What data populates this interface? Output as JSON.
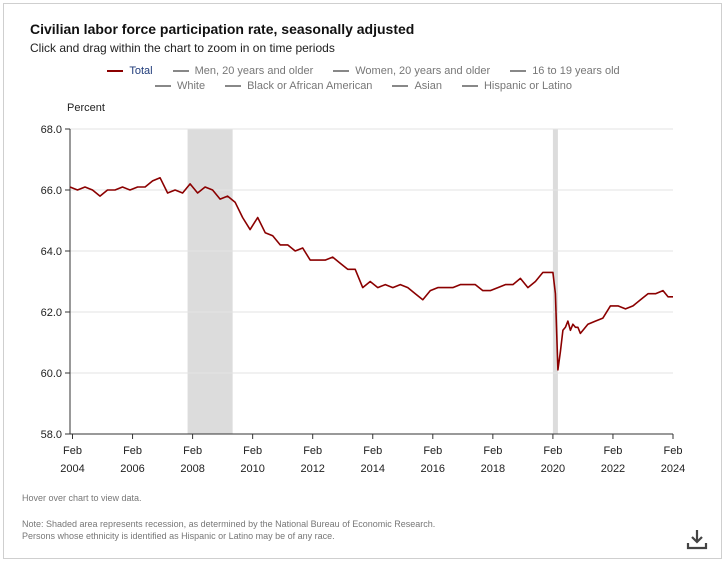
{
  "header": {
    "title": "Civilian labor force participation rate, seasonally adjusted",
    "subtitle": "Click and drag within the chart to zoom in on time periods"
  },
  "legend": {
    "row1": [
      {
        "label": "Total",
        "active": true
      },
      {
        "label": "Men, 20 years and older",
        "active": false
      },
      {
        "label": "Women, 20 years and older",
        "active": false
      },
      {
        "label": "16 to 19 years old",
        "active": false
      }
    ],
    "row2": [
      {
        "label": "White",
        "active": false
      },
      {
        "label": "Black or African American",
        "active": false
      },
      {
        "label": "Asian",
        "active": false
      },
      {
        "label": "Hispanic or Latino",
        "active": false
      }
    ]
  },
  "colors": {
    "total_line": "#8b0000",
    "recession_band": "#dcdcdc",
    "legend_active_text": "#1f3b7a",
    "legend_inactive": "#888888"
  },
  "footer": {
    "hover": "Hover over chart to view data.",
    "note_line1": "Note: Shaded area represents recession, as determined by the National Bureau of Economic Research.",
    "note_line2": "Persons whose ethnicity is identified as Hispanic or Latino may be of any race."
  },
  "icons": {
    "download": "download-icon"
  },
  "chart_data": {
    "type": "line",
    "title": "Civilian labor force participation rate, seasonally adjusted",
    "xlabel": "",
    "ylabel": "Percent",
    "ylim": [
      58.0,
      68.0
    ],
    "yticks": [
      "58.0",
      "60.0",
      "62.0",
      "64.0",
      "66.0",
      "68.0"
    ],
    "xlim": [
      "2004-01",
      "2024-02"
    ],
    "xticks": [
      {
        "month": "Feb",
        "year": "2004"
      },
      {
        "month": "Feb",
        "year": "2006"
      },
      {
        "month": "Feb",
        "year": "2008"
      },
      {
        "month": "Feb",
        "year": "2010"
      },
      {
        "month": "Feb",
        "year": "2012"
      },
      {
        "month": "Feb",
        "year": "2014"
      },
      {
        "month": "Feb",
        "year": "2016"
      },
      {
        "month": "Feb",
        "year": "2018"
      },
      {
        "month": "Feb",
        "year": "2020"
      },
      {
        "month": "Feb",
        "year": "2022"
      },
      {
        "month": "Feb",
        "year": "2024"
      }
    ],
    "recessions": [
      {
        "start": "2007-12",
        "end": "2009-06"
      },
      {
        "start": "2020-02",
        "end": "2020-04"
      }
    ],
    "grid": "horizontal",
    "legend_position": "top",
    "series": [
      {
        "name": "Total",
        "points": [
          [
            "2004-01",
            66.1
          ],
          [
            "2004-04",
            66.0
          ],
          [
            "2004-07",
            66.1
          ],
          [
            "2004-10",
            66.0
          ],
          [
            "2005-01",
            65.8
          ],
          [
            "2005-04",
            66.0
          ],
          [
            "2005-07",
            66.0
          ],
          [
            "2005-10",
            66.1
          ],
          [
            "2006-01",
            66.0
          ],
          [
            "2006-04",
            66.1
          ],
          [
            "2006-07",
            66.1
          ],
          [
            "2006-10",
            66.3
          ],
          [
            "2007-01",
            66.4
          ],
          [
            "2007-04",
            65.9
          ],
          [
            "2007-07",
            66.0
          ],
          [
            "2007-10",
            65.9
          ],
          [
            "2008-01",
            66.2
          ],
          [
            "2008-04",
            65.9
          ],
          [
            "2008-07",
            66.1
          ],
          [
            "2008-10",
            66.0
          ],
          [
            "2009-01",
            65.7
          ],
          [
            "2009-04",
            65.8
          ],
          [
            "2009-07",
            65.6
          ],
          [
            "2009-10",
            65.1
          ],
          [
            "2010-01",
            64.7
          ],
          [
            "2010-04",
            65.1
          ],
          [
            "2010-07",
            64.6
          ],
          [
            "2010-10",
            64.5
          ],
          [
            "2011-01",
            64.2
          ],
          [
            "2011-04",
            64.2
          ],
          [
            "2011-07",
            64.0
          ],
          [
            "2011-10",
            64.1
          ],
          [
            "2012-01",
            63.7
          ],
          [
            "2012-04",
            63.7
          ],
          [
            "2012-07",
            63.7
          ],
          [
            "2012-10",
            63.8
          ],
          [
            "2013-01",
            63.6
          ],
          [
            "2013-04",
            63.4
          ],
          [
            "2013-07",
            63.4
          ],
          [
            "2013-10",
            62.8
          ],
          [
            "2014-01",
            63.0
          ],
          [
            "2014-04",
            62.8
          ],
          [
            "2014-07",
            62.9
          ],
          [
            "2014-10",
            62.8
          ],
          [
            "2015-01",
            62.9
          ],
          [
            "2015-04",
            62.8
          ],
          [
            "2015-07",
            62.6
          ],
          [
            "2015-10",
            62.4
          ],
          [
            "2016-01",
            62.7
          ],
          [
            "2016-04",
            62.8
          ],
          [
            "2016-07",
            62.8
          ],
          [
            "2016-10",
            62.8
          ],
          [
            "2017-01",
            62.9
          ],
          [
            "2017-04",
            62.9
          ],
          [
            "2017-07",
            62.9
          ],
          [
            "2017-10",
            62.7
          ],
          [
            "2018-01",
            62.7
          ],
          [
            "2018-04",
            62.8
          ],
          [
            "2018-07",
            62.9
          ],
          [
            "2018-10",
            62.9
          ],
          [
            "2019-01",
            63.1
          ],
          [
            "2019-04",
            62.8
          ],
          [
            "2019-07",
            63.0
          ],
          [
            "2019-10",
            63.3
          ],
          [
            "2020-01",
            63.3
          ],
          [
            "2020-02",
            63.3
          ],
          [
            "2020-03",
            62.6
          ],
          [
            "2020-04",
            60.1
          ],
          [
            "2020-05",
            60.7
          ],
          [
            "2020-06",
            61.4
          ],
          [
            "2020-07",
            61.5
          ],
          [
            "2020-08",
            61.7
          ],
          [
            "2020-09",
            61.4
          ],
          [
            "2020-10",
            61.6
          ],
          [
            "2020-11",
            61.5
          ],
          [
            "2020-12",
            61.5
          ],
          [
            "2021-01",
            61.3
          ],
          [
            "2021-04",
            61.6
          ],
          [
            "2021-07",
            61.7
          ],
          [
            "2021-10",
            61.8
          ],
          [
            "2022-01",
            62.2
          ],
          [
            "2022-04",
            62.2
          ],
          [
            "2022-07",
            62.1
          ],
          [
            "2022-10",
            62.2
          ],
          [
            "2023-01",
            62.4
          ],
          [
            "2023-04",
            62.6
          ],
          [
            "2023-07",
            62.6
          ],
          [
            "2023-10",
            62.7
          ],
          [
            "2023-12",
            62.5
          ],
          [
            "2024-01",
            62.5
          ],
          [
            "2024-02",
            62.5
          ]
        ]
      }
    ]
  }
}
